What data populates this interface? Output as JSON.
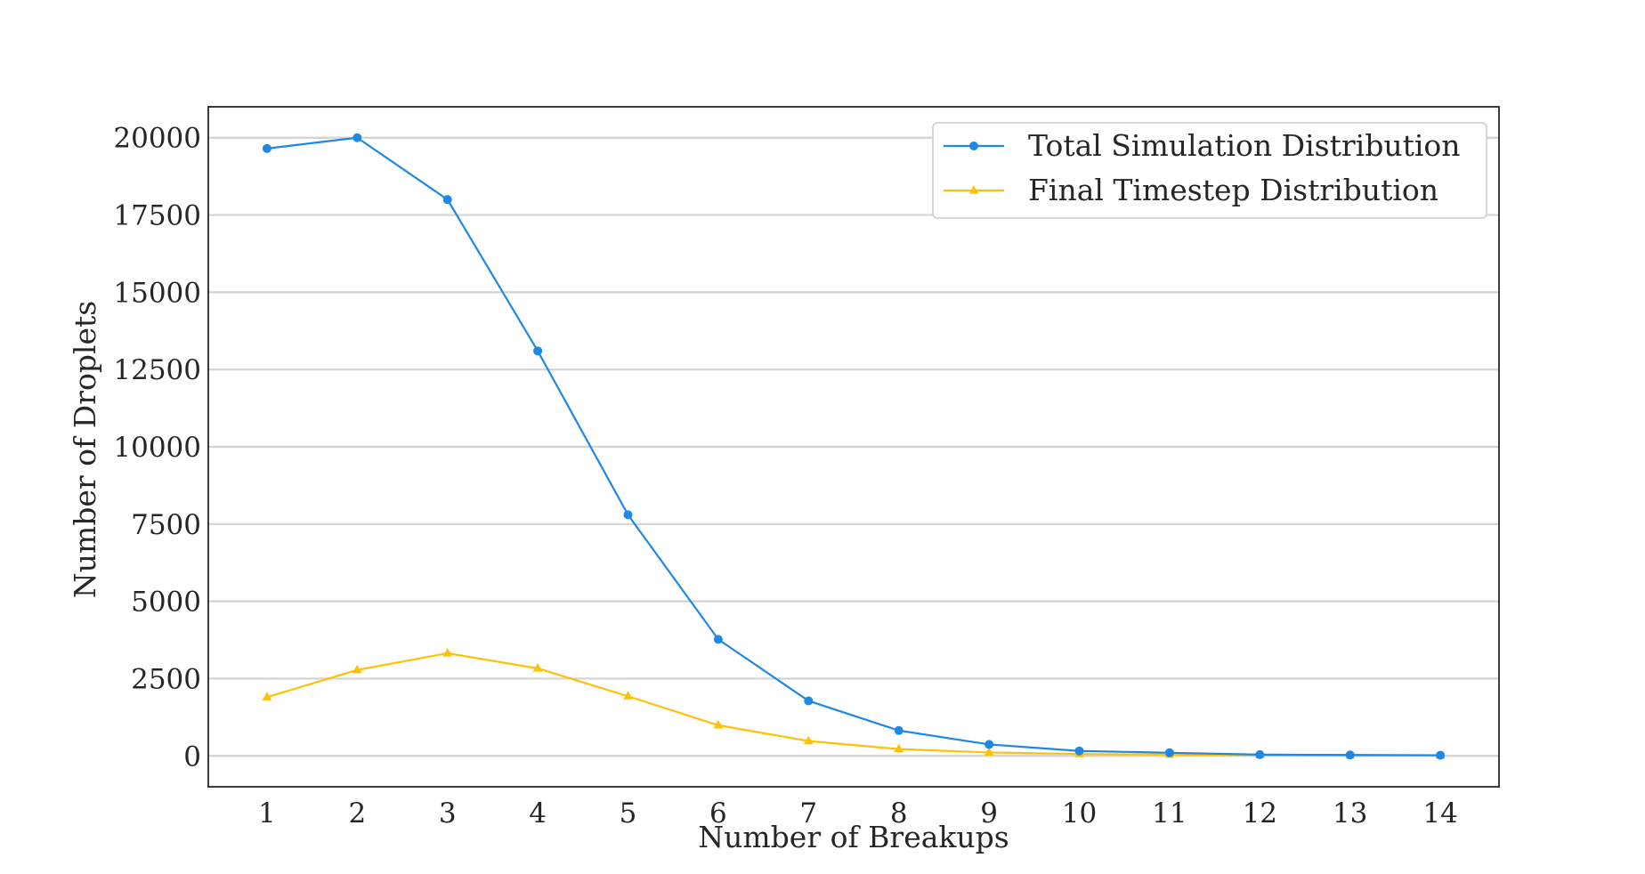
{
  "chart_data": {
    "type": "line",
    "xlabel": "Number of Breakups",
    "ylabel": "Number of Droplets",
    "x": [
      1,
      2,
      3,
      4,
      5,
      6,
      7,
      8,
      9,
      10,
      11,
      12,
      13,
      14
    ],
    "xlim": [
      0.35,
      14.65
    ],
    "ylim": [
      -1000,
      21000
    ],
    "yticks": [
      0,
      2500,
      5000,
      7500,
      10000,
      12500,
      15000,
      17500,
      20000
    ],
    "grid": "horizontal",
    "legend_position": "top-right",
    "series": [
      {
        "name": "Total Simulation Distribution",
        "color": "#1e88e5",
        "marker": "circle",
        "values": [
          19650,
          20000,
          18000,
          13100,
          7800,
          3770,
          1780,
          820,
          370,
          160,
          100,
          40,
          30,
          20
        ]
      },
      {
        "name": "Final Timestep Distribution",
        "color": "#ffc107",
        "marker": "triangle",
        "values": [
          1900,
          2780,
          3320,
          2830,
          1930,
          990,
          480,
          220,
          110,
          60,
          40,
          20,
          10,
          10
        ]
      }
    ]
  }
}
